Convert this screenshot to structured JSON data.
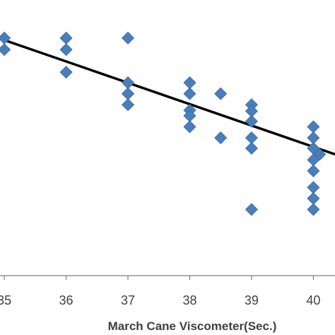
{
  "chart_data": {
    "type": "scatter",
    "title": "",
    "xlabel": "March Cane Viscometer(Sec.)",
    "ylabel": "",
    "x_ticks": [
      "35",
      "36",
      "37",
      "38",
      "39",
      "40"
    ],
    "xlim": [
      34.93,
      40.35
    ],
    "ylim": [
      0,
      10
    ],
    "grid": false,
    "legend": "none",
    "colors": {
      "marker": "#4a7ebb",
      "marker_edge": "#3c6aa3",
      "trendline": "#000000",
      "axis": "#7f7f7f"
    },
    "series": [
      {
        "x": [
          35,
          35,
          36,
          36,
          36,
          37,
          37,
          37,
          37,
          37,
          38,
          38,
          38,
          38,
          38,
          38.5,
          38.5,
          39,
          39,
          39,
          39,
          39,
          39,
          40,
          40,
          40,
          40,
          40,
          40,
          40,
          40,
          40.1
        ],
        "y": [
          8.62,
          8.2,
          8.62,
          8.2,
          7.38,
          8.62,
          7.0,
          6.6,
          6.2,
          6.6,
          7.0,
          6.6,
          6.0,
          5.8,
          5.4,
          6.6,
          5.0,
          6.2,
          5.97,
          5.6,
          5.0,
          4.62,
          2.4,
          5.4,
          5.0,
          4.62,
          4.2,
          3.8,
          3.2,
          2.8,
          2.4,
          4.4
        ]
      }
    ],
    "trendline": {
      "type": "linear",
      "x": [
        34.93,
        40.35
      ],
      "y": [
        8.6,
        4.4
      ]
    }
  }
}
